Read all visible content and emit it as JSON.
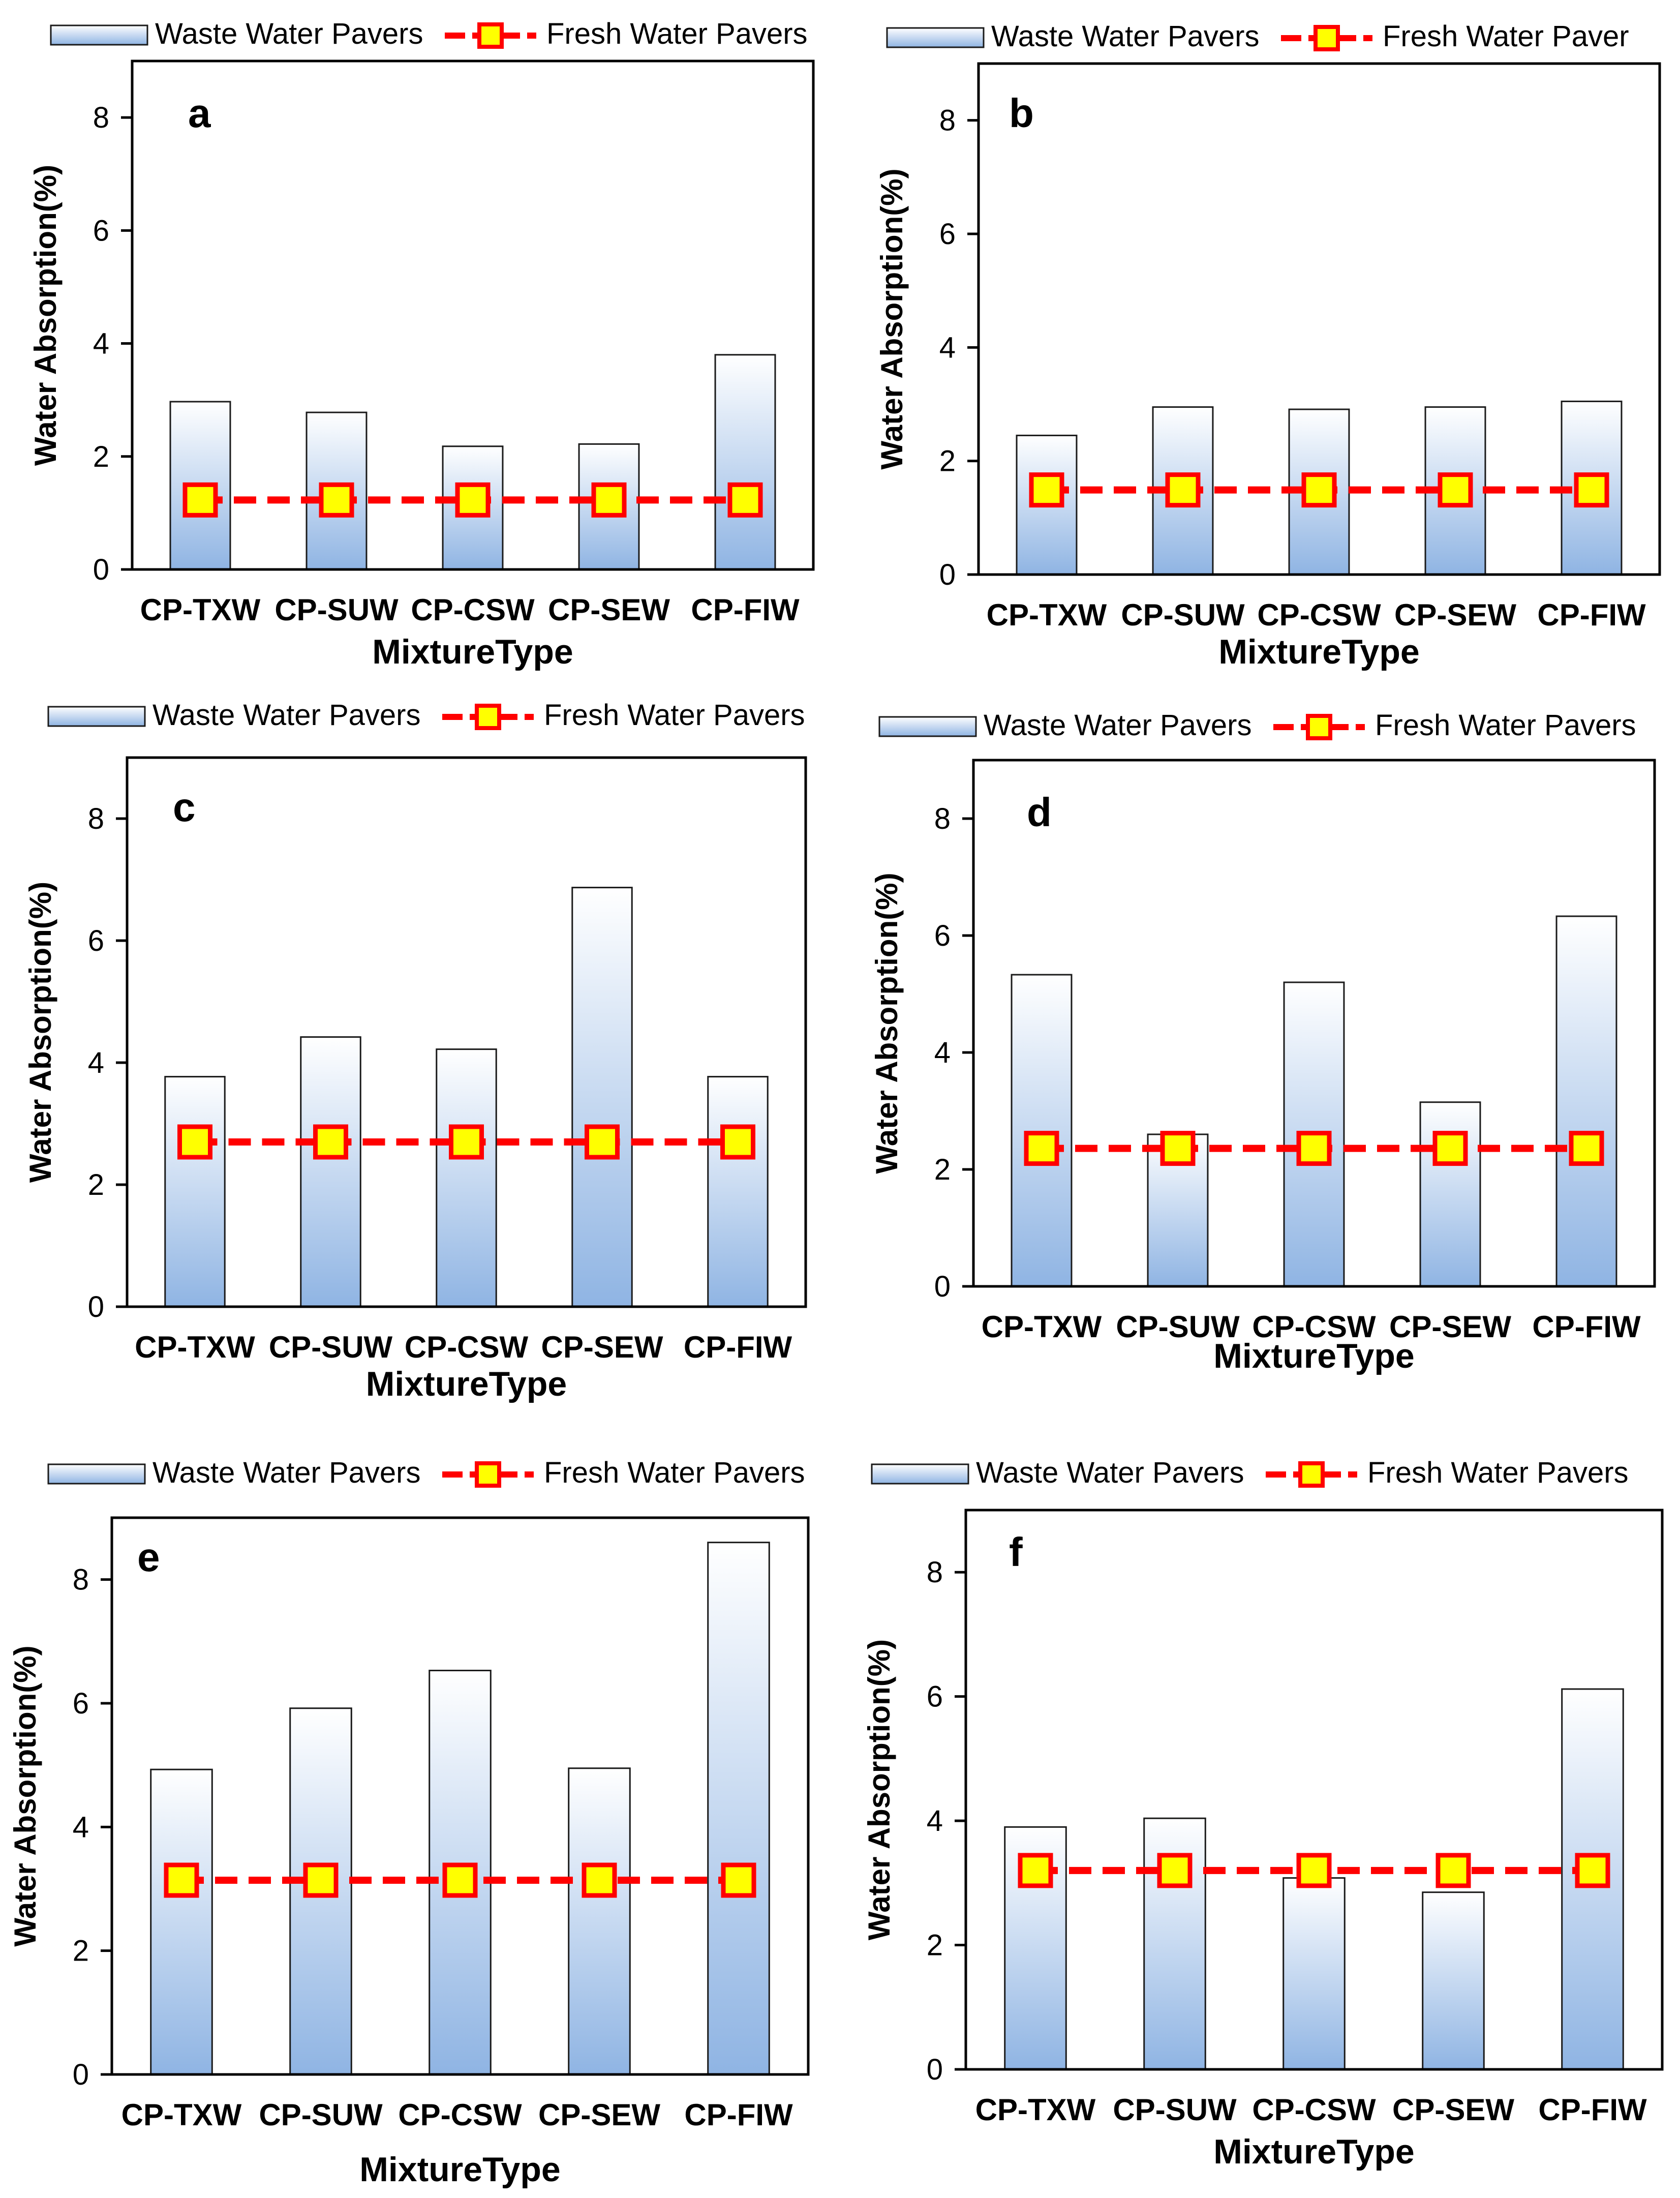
{
  "colors": {
    "bar_top": "#ffffff",
    "bar_bottom": "#8fb4e3",
    "bar_stroke": "#1a1a1a",
    "line": "#ff0000",
    "marker_fill": "#ffff00",
    "marker_stroke": "#ff0000",
    "axis": "#000000"
  },
  "chart_data": [
    {
      "type": "bar",
      "panel_label": "a",
      "legend": {
        "bar": "Waste Water Pavers",
        "line": "Fresh Water Pavers"
      },
      "categories": [
        "CP-TXW",
        "CP-SUW",
        "CP-CSW",
        "CP-SEW",
        "CP-FIW"
      ],
      "series": [
        {
          "name": "Waste Water Pavers",
          "kind": "bar",
          "values": [
            2.97,
            2.78,
            2.18,
            2.22,
            3.8
          ]
        },
        {
          "name": "Fresh Water Pavers",
          "kind": "line",
          "values": [
            1.23,
            1.23,
            1.23,
            1.23,
            1.23
          ]
        }
      ],
      "xlabel": "MixtureType",
      "ylabel": "Water Absorption(%)",
      "ylim": [
        0,
        9
      ],
      "yticks": [
        "0",
        "2",
        "4",
        "6",
        "8"
      ],
      "grid": false
    },
    {
      "type": "bar",
      "panel_label": "b",
      "legend": {
        "bar": "Waste Water Pavers",
        "line": "Fresh Water Paver"
      },
      "categories": [
        "CP-TXW",
        "CP-SUW",
        "CP-CSW",
        "CP-SEW",
        "CP-FIW"
      ],
      "series": [
        {
          "name": "Waste Water Pavers",
          "kind": "bar",
          "values": [
            2.45,
            2.95,
            2.91,
            2.95,
            3.05
          ]
        },
        {
          "name": "Fresh Water Paver",
          "kind": "line",
          "values": [
            1.49,
            1.49,
            1.49,
            1.49,
            1.49
          ]
        }
      ],
      "xlabel": "MixtureType",
      "ylabel": "Water Absorption(%)",
      "ylim": [
        0,
        9
      ],
      "yticks": [
        "0",
        "2",
        "4",
        "6",
        "8"
      ],
      "grid": false
    },
    {
      "type": "bar",
      "panel_label": "c",
      "legend": {
        "bar": "Waste Water Pavers",
        "line": "Fresh Water Pavers"
      },
      "categories": [
        "CP-TXW",
        "CP-SUW",
        "CP-CSW",
        "CP-SEW",
        "CP-FIW"
      ],
      "series": [
        {
          "name": "Waste Water Pavers",
          "kind": "bar",
          "values": [
            3.77,
            4.42,
            4.22,
            6.87,
            3.77
          ]
        },
        {
          "name": "Fresh Water Pavers",
          "kind": "line",
          "values": [
            2.7,
            2.7,
            2.7,
            2.7,
            2.7
          ]
        }
      ],
      "xlabel": "MixtureType",
      "ylabel": "Water Absorption(%)",
      "ylim": [
        0,
        9
      ],
      "yticks": [
        "0",
        "2",
        "4",
        "6",
        "8"
      ],
      "grid": false
    },
    {
      "type": "bar",
      "panel_label": "d",
      "legend": {
        "bar": "Waste Water Pavers",
        "line": "Fresh Water Pavers"
      },
      "categories": [
        "CP-TXW",
        "CP-SUW",
        "CP-CSW",
        "CP-SEW",
        "CP-FIW"
      ],
      "series": [
        {
          "name": "Waste Water Pavers",
          "kind": "bar",
          "values": [
            5.33,
            2.6,
            5.2,
            3.15,
            6.33
          ]
        },
        {
          "name": "Fresh Water Pavers",
          "kind": "line",
          "values": [
            2.36,
            2.36,
            2.36,
            2.36,
            2.36
          ]
        }
      ],
      "xlabel": "MixtureType",
      "ylabel": "Water Absorption(%)",
      "ylim": [
        0,
        9
      ],
      "yticks": [
        "0",
        "2",
        "4",
        "6",
        "8"
      ],
      "grid": false
    },
    {
      "type": "bar",
      "panel_label": "e",
      "legend": {
        "bar": "Waste Water Pavers",
        "line": "Fresh Water Pavers"
      },
      "categories": [
        "CP-TXW",
        "CP-SUW",
        "CP-CSW",
        "CP-SEW",
        "CP-FIW"
      ],
      "series": [
        {
          "name": "Waste Water Pavers",
          "kind": "bar",
          "values": [
            4.93,
            5.92,
            6.53,
            4.95,
            8.6
          ]
        },
        {
          "name": "Fresh Water Pavers",
          "kind": "line",
          "values": [
            3.14,
            3.14,
            3.14,
            3.14,
            3.14
          ]
        }
      ],
      "xlabel": "MixtureType",
      "ylabel": "Water Absorption(%)",
      "ylim": [
        0,
        9
      ],
      "yticks": [
        "0",
        "2",
        "4",
        "6",
        "8"
      ],
      "grid": false
    },
    {
      "type": "bar",
      "panel_label": "f",
      "legend": {
        "bar": "Waste Water Pavers",
        "line": "Fresh Water Pavers"
      },
      "categories": [
        "CP-TXW",
        "CP-SUW",
        "CP-CSW",
        "CP-SEW",
        "CP-FIW"
      ],
      "series": [
        {
          "name": "Waste Water Pavers",
          "kind": "bar",
          "values": [
            3.9,
            4.04,
            3.08,
            2.85,
            6.12
          ]
        },
        {
          "name": "Fresh Water Pavers",
          "kind": "line",
          "values": [
            3.2,
            3.2,
            3.2,
            3.2,
            3.2
          ]
        }
      ],
      "xlabel": "MixtureType",
      "ylabel": "Water Absorption(%)",
      "ylim": [
        0,
        9
      ],
      "yticks": [
        "0",
        "2",
        "4",
        "6",
        "8"
      ],
      "grid": false
    }
  ]
}
